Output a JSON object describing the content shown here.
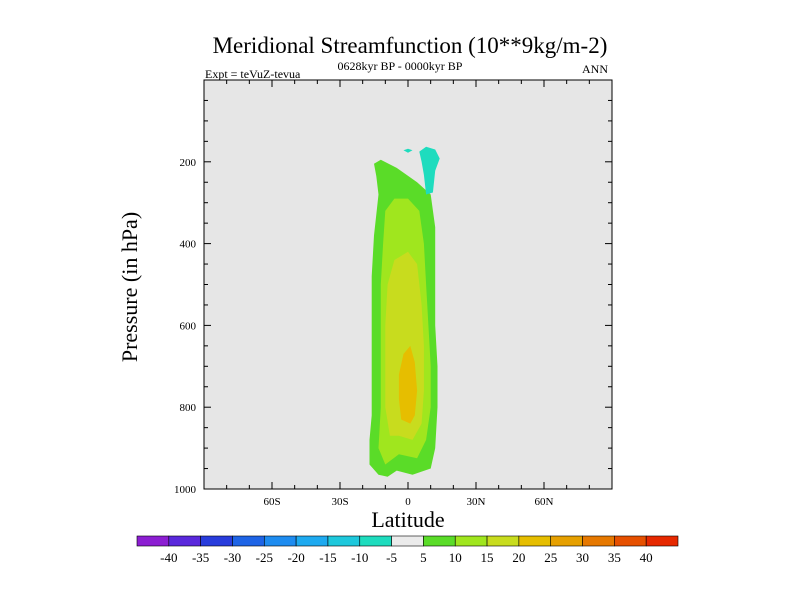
{
  "chart_data": {
    "type": "contour",
    "title": "Meridional Streamfunction (10**9kg/m-2)",
    "left_string": "Expt = teVuZ-tevua",
    "center_string": "0628kyr BP - 0000kyr BP",
    "right_string": "ANN",
    "xlabel": "Latitude",
    "ylabel": "Pressure (in hPa)",
    "xlim": [
      -90,
      90
    ],
    "ylim": [
      1000,
      0
    ],
    "x_ticks": [
      {
        "value": -60,
        "label": "60S"
      },
      {
        "value": -30,
        "label": "30S"
      },
      {
        "value": 0,
        "label": "0"
      },
      {
        "value": 30,
        "label": "30N"
      },
      {
        "value": 60,
        "label": "60N"
      }
    ],
    "y_ticks": [
      {
        "value": 200,
        "label": "200"
      },
      {
        "value": 400,
        "label": "400"
      },
      {
        "value": 600,
        "label": "600"
      },
      {
        "value": 800,
        "label": "800"
      },
      {
        "value": 1000,
        "label": "1000"
      }
    ],
    "background_color": "#e6e6e6",
    "colorbar": {
      "labels": [
        "-40",
        "-35",
        "-30",
        "-25",
        "-20",
        "-15",
        "-10",
        "-5",
        "5",
        "10",
        "15",
        "20",
        "25",
        "30",
        "35",
        "40"
      ],
      "colors": [
        "#8c1ed2",
        "#5a28dc",
        "#283cdc",
        "#1e64e6",
        "#1e8cf0",
        "#1eaaf0",
        "#1ec8dc",
        "#1edcbe",
        "#ebebeb",
        "#5adc28",
        "#a0e61e",
        "#c8dc1e",
        "#e6be00",
        "#e6a000",
        "#e67800",
        "#e65000",
        "#e62800"
      ]
    },
    "contours": [
      {
        "level": "5 to 10",
        "color": "#5adc28",
        "points": [
          [
            -13,
            965
          ],
          [
            -17,
            940
          ],
          [
            -17,
            880
          ],
          [
            -16,
            820
          ],
          [
            -16,
            720
          ],
          [
            -16,
            600
          ],
          [
            -16,
            480
          ],
          [
            -15,
            380
          ],
          [
            -13,
            280
          ],
          [
            -14,
            235
          ],
          [
            -15,
            205
          ],
          [
            -12,
            195
          ],
          [
            -5,
            215
          ],
          [
            4,
            250
          ],
          [
            10,
            280
          ],
          [
            12,
            360
          ],
          [
            12,
            480
          ],
          [
            12,
            600
          ],
          [
            13,
            700
          ],
          [
            13,
            800
          ],
          [
            12,
            900
          ],
          [
            10,
            950
          ],
          [
            2,
            965
          ],
          [
            -5,
            955
          ],
          [
            -9,
            970
          ]
        ]
      },
      {
        "level": "10 to 15",
        "color": "#a0e61e",
        "points": [
          [
            -10,
            940
          ],
          [
            -13,
            900
          ],
          [
            -12,
            800
          ],
          [
            -12,
            700
          ],
          [
            -12,
            600
          ],
          [
            -12,
            500
          ],
          [
            -11,
            400
          ],
          [
            -10,
            320
          ],
          [
            -6,
            290
          ],
          [
            0,
            290
          ],
          [
            5,
            320
          ],
          [
            7,
            400
          ],
          [
            8,
            500
          ],
          [
            9,
            600
          ],
          [
            10,
            700
          ],
          [
            10,
            800
          ],
          [
            8,
            880
          ],
          [
            4,
            925
          ],
          [
            -4,
            915
          ]
        ]
      },
      {
        "level": "15 to 20",
        "color": "#c8dc1e",
        "points": [
          [
            -8,
            870
          ],
          [
            -10,
            800
          ],
          [
            -10,
            700
          ],
          [
            -10,
            600
          ],
          [
            -9,
            500
          ],
          [
            -6,
            440
          ],
          [
            0,
            420
          ],
          [
            4,
            450
          ],
          [
            6,
            550
          ],
          [
            7,
            650
          ],
          [
            7,
            760
          ],
          [
            6,
            840
          ],
          [
            2,
            880
          ],
          [
            -4,
            870
          ]
        ]
      },
      {
        "level": "20 to 25",
        "color": "#e6be00",
        "points": [
          [
            -3,
            830
          ],
          [
            -4,
            780
          ],
          [
            -4,
            720
          ],
          [
            -2,
            670
          ],
          [
            1,
            650
          ],
          [
            3,
            690
          ],
          [
            4,
            760
          ],
          [
            3,
            820
          ],
          [
            1,
            840
          ]
        ]
      },
      {
        "level": "-10 to -5",
        "color": "#1edcbe",
        "points": [
          [
            5,
            175
          ],
          [
            8,
            163
          ],
          [
            12,
            170
          ],
          [
            14,
            192
          ],
          [
            12,
            222
          ],
          [
            11,
            275
          ],
          [
            8,
            280
          ],
          [
            7,
            232
          ],
          [
            6,
            200
          ]
        ]
      },
      {
        "level": "-10 to -5",
        "color": "#1edcbe",
        "points": [
          [
            -2,
            172
          ],
          [
            0,
            168
          ],
          [
            2,
            172
          ],
          [
            0,
            178
          ]
        ]
      }
    ]
  }
}
